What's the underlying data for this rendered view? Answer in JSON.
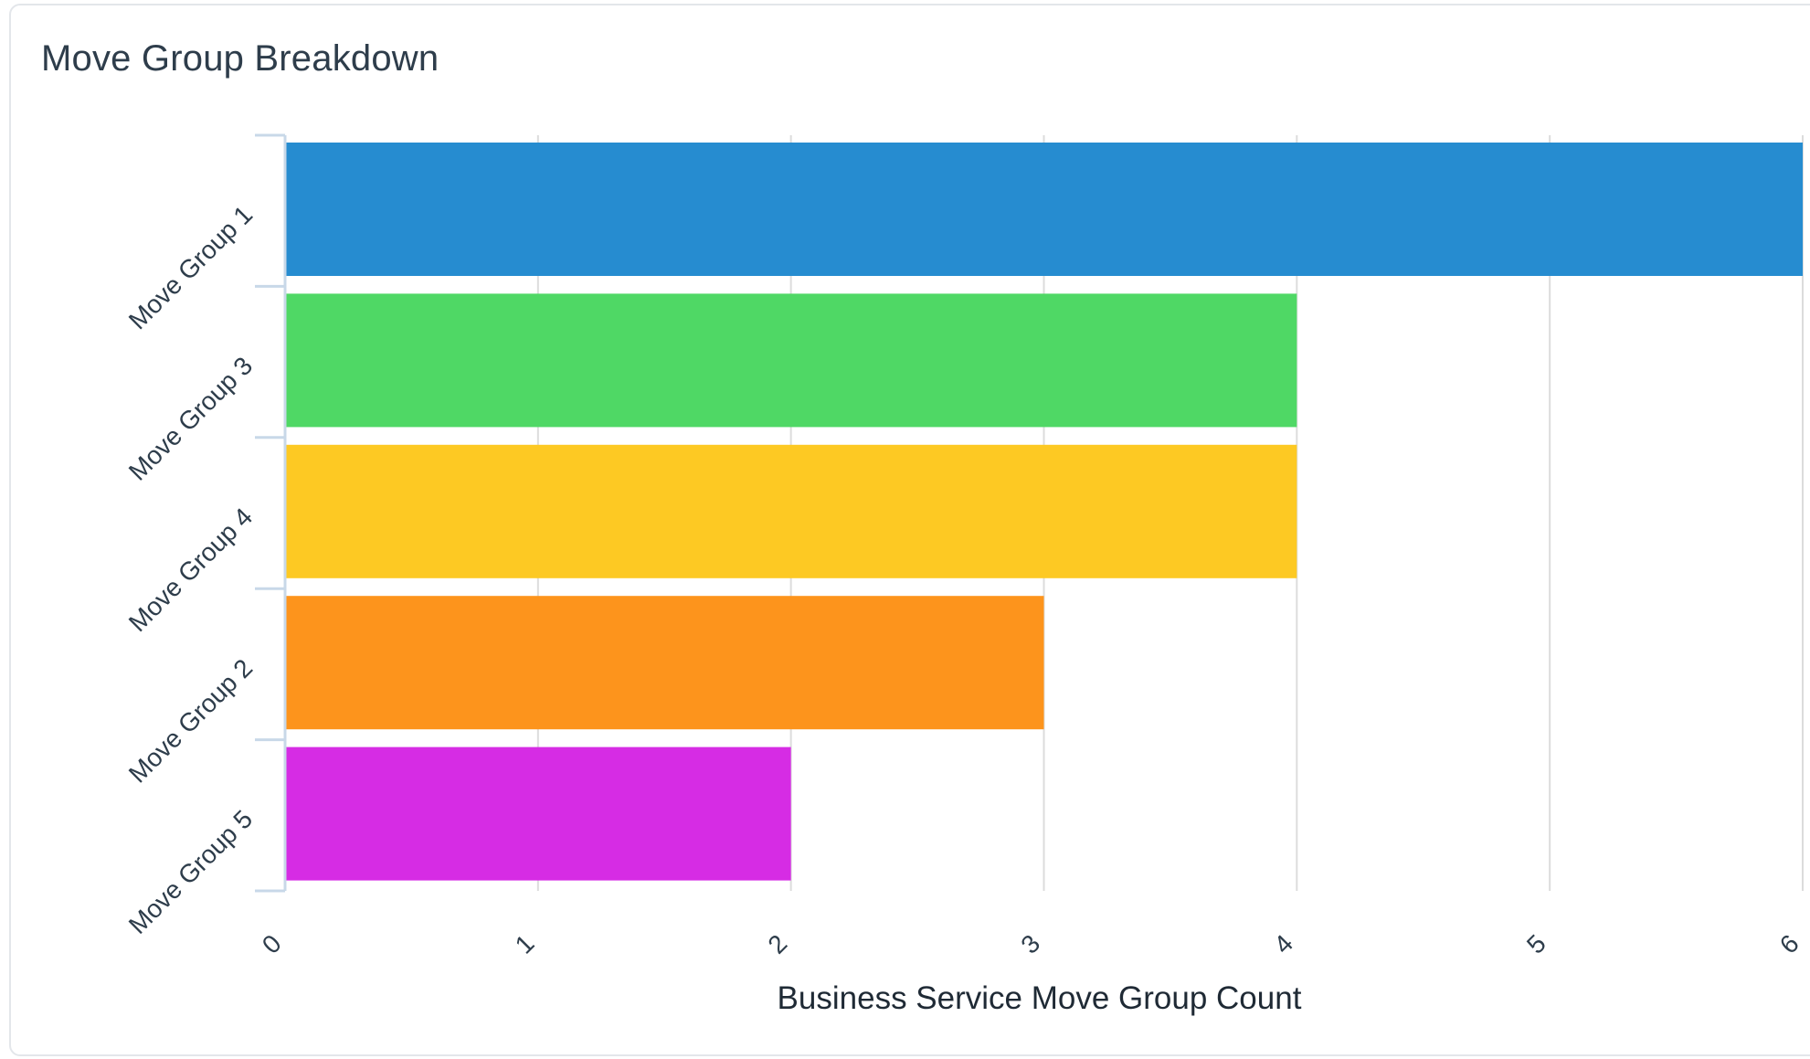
{
  "card": {
    "title": "Move Group Breakdown"
  },
  "chart_data": {
    "type": "bar",
    "orientation": "horizontal",
    "title": "Move Group Breakdown",
    "categories": [
      "Move Group 1",
      "Move Group 3",
      "Move Group 4",
      "Move Group 2",
      "Move Group 5"
    ],
    "values": [
      6,
      4,
      4,
      3,
      2
    ],
    "colors": [
      "#268cd0",
      "#4fd865",
      "#fdc923",
      "#fd941c",
      "#d62ce4"
    ],
    "xlabel": "Business Service Move Group Count",
    "ylabel": "",
    "xlim": [
      0,
      6
    ],
    "xticks": [
      "0",
      "1",
      "2",
      "3",
      "4",
      "5",
      "6"
    ],
    "grid": true,
    "gridColor": "#dcdcdc",
    "axisColor": "#c8d8e8"
  }
}
